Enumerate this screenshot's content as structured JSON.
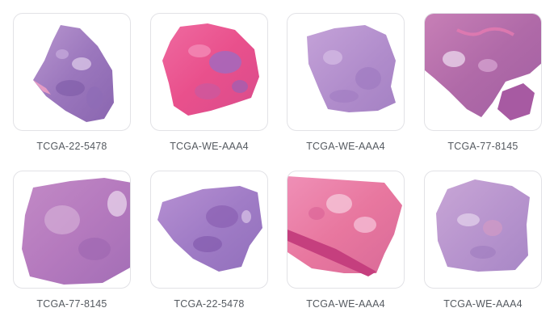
{
  "slides": [
    {
      "label": "TCGA-22-5478",
      "stain": "purple"
    },
    {
      "label": "TCGA-WE-AAA4",
      "stain": "pink"
    },
    {
      "label": "TCGA-WE-AAA4",
      "stain": "lavender"
    },
    {
      "label": "TCGA-77-8145",
      "stain": "purple-pink"
    },
    {
      "label": "TCGA-77-8145",
      "stain": "purple"
    },
    {
      "label": "TCGA-22-5478",
      "stain": "purple"
    },
    {
      "label": "TCGA-WE-AAA4",
      "stain": "pink"
    },
    {
      "label": "TCGA-WE-AAA4",
      "stain": "lavender"
    }
  ]
}
